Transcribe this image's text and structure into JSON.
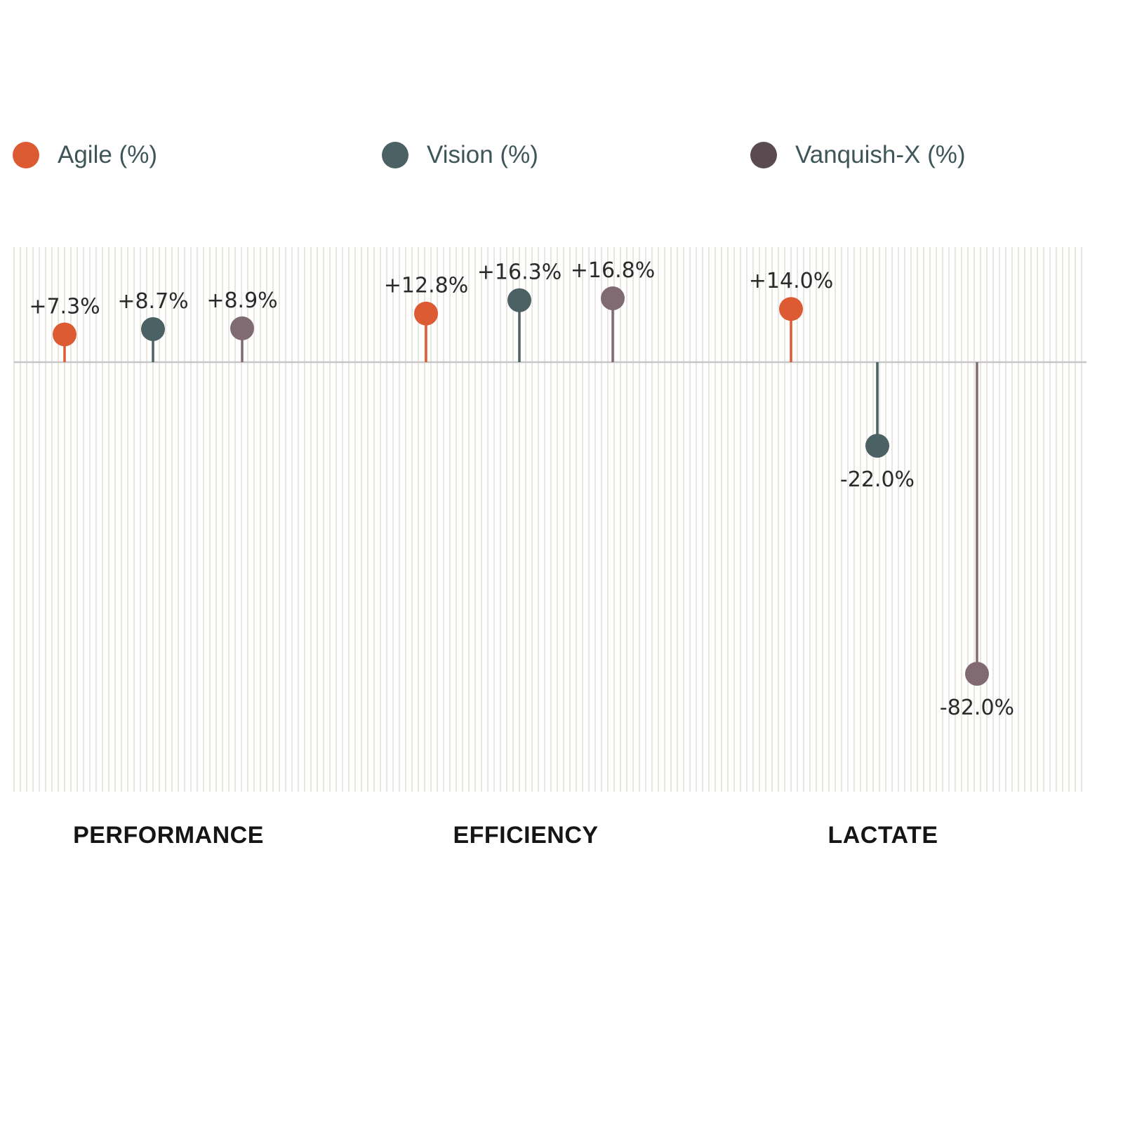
{
  "colors": {
    "agile": "#dd5b32",
    "vision": "#4c6163",
    "vanquish": "#806b72",
    "vanquish_legend": "#5c4a51",
    "grid": "#e2dfd6",
    "baseline": "#c6c6c6"
  },
  "chart_data": {
    "type": "lollipop",
    "categories": [
      "PERFORMANCE",
      "EFFICIENCY",
      "LACTATE"
    ],
    "series": [
      {
        "name": "Agile (%)",
        "values": [
          7.3,
          12.8,
          14.0
        ],
        "labels": [
          "+7.3%",
          "+12.8%",
          "+14.0%"
        ]
      },
      {
        "name": "Vision (%)",
        "values": [
          8.7,
          16.3,
          -22.0
        ],
        "labels": [
          "+8.7%",
          "+16.3%",
          "-22.0%"
        ]
      },
      {
        "name": "Vanquish-X (%)",
        "values": [
          8.9,
          16.8,
          -82.0
        ],
        "labels": [
          "+8.9%",
          "+16.8%",
          "-82.0%"
        ]
      }
    ],
    "legend_position": "top",
    "grid": "vertical"
  }
}
